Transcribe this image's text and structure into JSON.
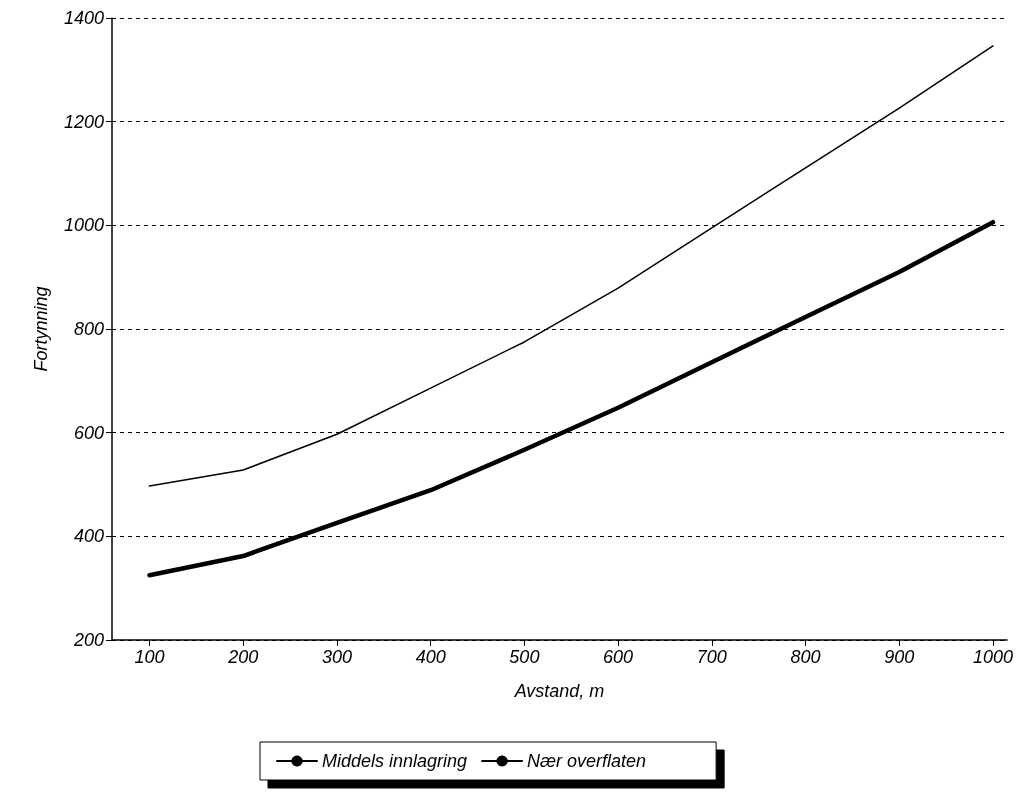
{
  "chart_data": {
    "type": "line",
    "xlabel": "Avstand, m",
    "ylabel": "Fortynning",
    "x": [
      100,
      200,
      300,
      400,
      500,
      600,
      700,
      800,
      900,
      1000
    ],
    "series": [
      {
        "name": "Middels innlagring",
        "color": "#000000",
        "values": [
          325,
          362,
          426,
          489,
          567,
          648,
          736,
          823,
          910,
          1006
        ]
      },
      {
        "name": "Nær overflaten",
        "color": "#000000",
        "values": [
          497,
          528,
          597,
          686,
          775,
          879,
          995,
          1111,
          1226,
          1346
        ]
      }
    ],
    "xlim": [
      60,
      1015
    ],
    "xticks": [
      100,
      200,
      300,
      400,
      500,
      600,
      700,
      800,
      900,
      1000
    ],
    "ylim": [
      200,
      1400
    ],
    "yticks": [
      200,
      400,
      600,
      800,
      1000,
      1200,
      1400
    ],
    "grid": "y",
    "legend": "bottom",
    "marker": "none",
    "line_style": "solid"
  }
}
